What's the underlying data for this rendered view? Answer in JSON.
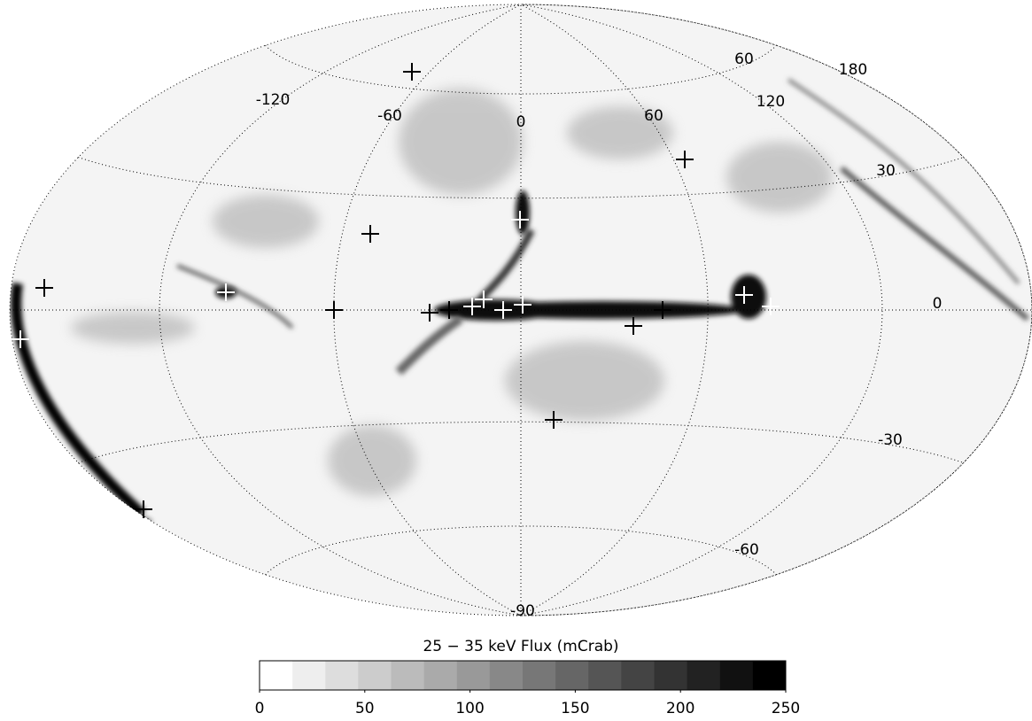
{
  "map": {
    "projection": "hammer-aitoff",
    "longitude_ticks": [
      -120,
      -60,
      0,
      60,
      120,
      180
    ],
    "latitude_ticks": [
      60,
      30,
      0,
      -30,
      -60,
      -90
    ]
  },
  "colorbar": {
    "title": "25 − 35 keV Flux (mCrab)",
    "range": [
      0,
      250
    ],
    "ticks": [
      0,
      50,
      100,
      150,
      200,
      250
    ],
    "steps": 16
  }
}
